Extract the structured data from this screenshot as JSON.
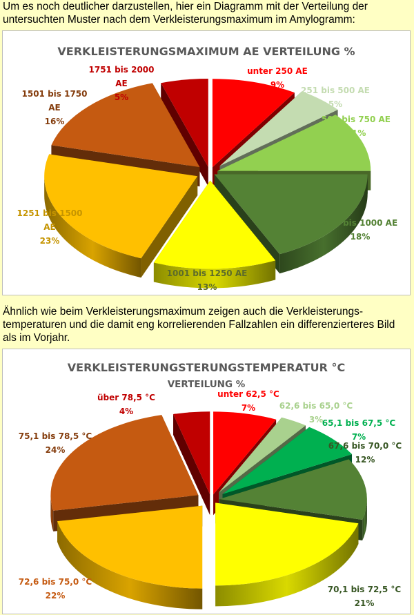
{
  "texts": {
    "intro": "Um es noch deutlicher darzustellen, hier ein Diagramm mit der Verteilung der untersuchten Muster nach dem Verkleisterungsmaximum im Amylogramm:",
    "middle": "Ähnlich wie beim Verkleisterungsmaximum zeigen auch die Verkleisterungs-temperaturen und die damit eng korrelierenden Fallzahlen ein differenzierteres Bild als im Vorjahr."
  },
  "chart_data": [
    {
      "type": "pie",
      "style": "3d-exploded",
      "title": "VERKLEISTERUNGSMAXIMUM AE VERTEILUNG %",
      "subtitle": "",
      "slices": [
        {
          "label": "unter 250 AE",
          "value": 9,
          "pct": "9%",
          "color": "#ff0000"
        },
        {
          "label": "251 bis 500 AE",
          "value": 5,
          "pct": "5%",
          "color": "#c4dcb1"
        },
        {
          "label": "501 bis 750 AE",
          "value": 11,
          "pct": "11%",
          "color": "#92d050"
        },
        {
          "label": "751 bis 1000 AE",
          "value": 18,
          "pct": "18%",
          "color": "#548235"
        },
        {
          "label": "1001 bis 1250 AE",
          "value": 13,
          "pct": "13%",
          "color": "#ffff00"
        },
        {
          "label": "1251 bis 1500 AE",
          "value": 23,
          "pct": "23%",
          "color": "#ffc000"
        },
        {
          "label": "1501 bis 1750 AE",
          "value": 16,
          "pct": "16%",
          "color": "#c55a11"
        },
        {
          "label": "1751 bis 2000 AE",
          "value": 5,
          "pct": "5%",
          "color": "#c00000"
        }
      ]
    },
    {
      "type": "pie",
      "style": "3d-exploded",
      "title": "VERKLEISTERUNGSTERUNGSTEMPERATUR °C",
      "subtitle": "VERTEILUNG %",
      "slices": [
        {
          "label": "unter 62,5 °C",
          "value": 7,
          "pct": "7%",
          "color": "#ff0000"
        },
        {
          "label": "62,6 bis 65,0 °C",
          "value": 3,
          "pct": "3%",
          "color": "#a9d18e"
        },
        {
          "label": "65,1 bis 67,5 °C",
          "value": 7,
          "pct": "7%",
          "color": "#00b050"
        },
        {
          "label": "67,6 bis 70,0 °C",
          "value": 12,
          "pct": "12%",
          "color": "#548235"
        },
        {
          "label": "70,1 bis 72,5 °C",
          "value": 21,
          "pct": "21%",
          "color": "#ffff00"
        },
        {
          "label": "72,6 bis 75,0 °C",
          "value": 22,
          "pct": "22%",
          "color": "#ffc000"
        },
        {
          "label": "75,1 bis 78,5 °C",
          "value": 24,
          "pct": "24%",
          "color": "#c55a11"
        },
        {
          "label": "über 78,5 °C",
          "value": 4,
          "pct": "4%",
          "color": "#c00000"
        }
      ]
    }
  ]
}
